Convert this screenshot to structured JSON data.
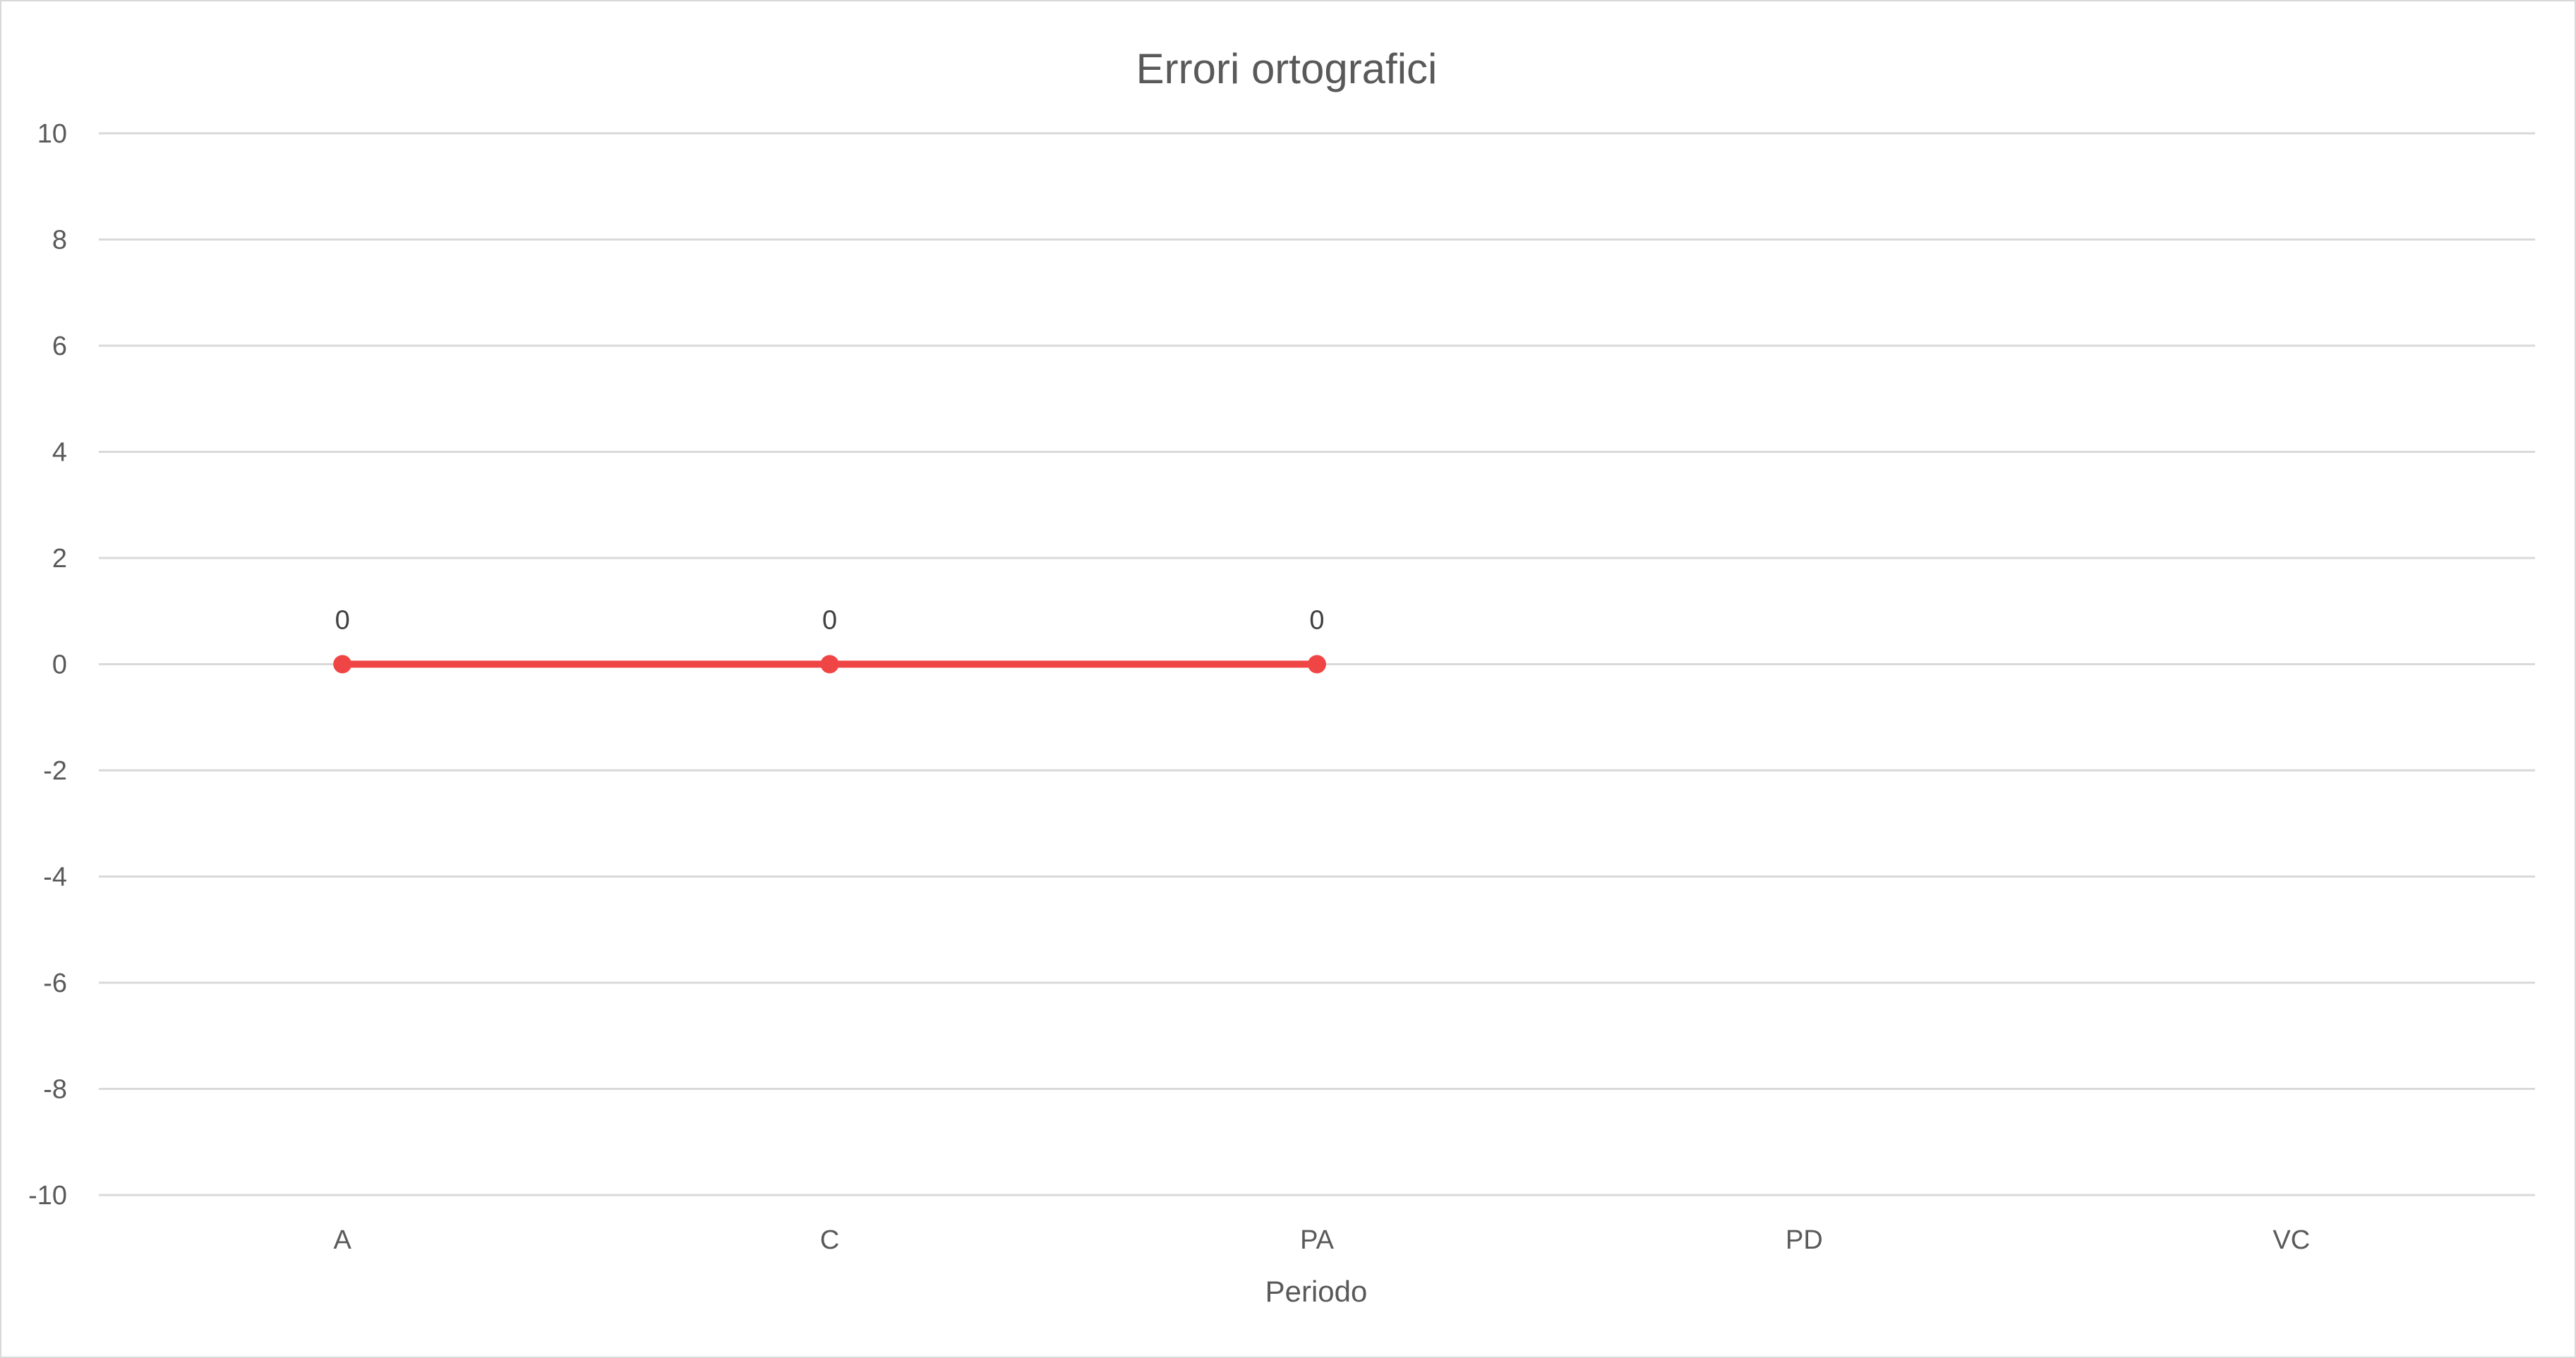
{
  "chart_data": {
    "type": "line",
    "title": "Errori ortografici",
    "xlabel": "Periodo",
    "ylabel": "",
    "categories": [
      "A",
      "C",
      "PA",
      "PD",
      "VC"
    ],
    "ylim": [
      -10,
      10
    ],
    "yticks": [
      10,
      8,
      6,
      4,
      2,
      0,
      -2,
      -4,
      -6,
      -8,
      -10
    ],
    "grid": true,
    "legend": "none",
    "series": [
      {
        "values": [
          0,
          0,
          0,
          null,
          null
        ],
        "data_labels": [
          "0",
          "0",
          "0",
          "",
          ""
        ],
        "color": "#f04545"
      }
    ]
  }
}
